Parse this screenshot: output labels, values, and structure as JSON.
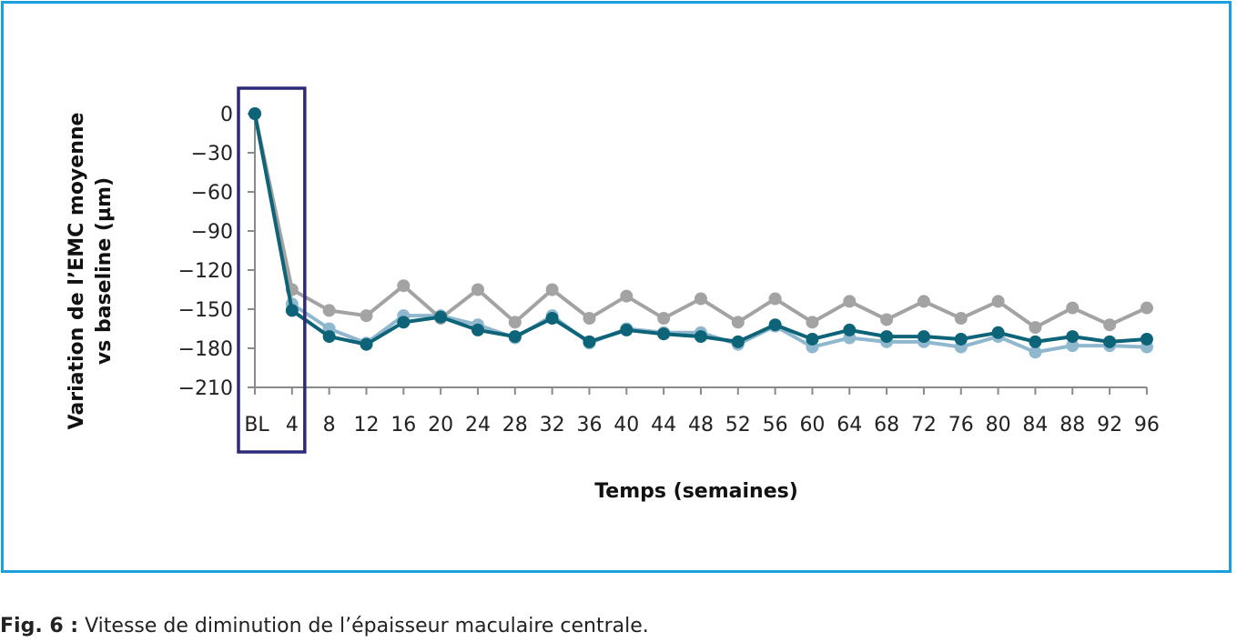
{
  "chart_data": {
    "type": "line",
    "xlabel": "Temps (semaines)",
    "ylabel_line1": "Variation de l’EMC moyenne",
    "ylabel_line2": "vs baseline (µm)",
    "categories": [
      "BL",
      "4",
      "8",
      "12",
      "16",
      "20",
      "24",
      "28",
      "32",
      "36",
      "40",
      "44",
      "48",
      "52",
      "56",
      "60",
      "64",
      "68",
      "72",
      "76",
      "80",
      "84",
      "88",
      "92",
      "96"
    ],
    "yticks": [
      0,
      -30,
      -60,
      -90,
      -120,
      -150,
      -180,
      -210
    ],
    "ytick_labels": [
      "0",
      "−30",
      "−60",
      "−90",
      "−120",
      "−150",
      "−180",
      "−210"
    ],
    "ylim": [
      -210,
      0
    ],
    "grid": false,
    "highlight_box": {
      "from": "BL",
      "to": "4",
      "color": "#2e2a7a"
    },
    "series": [
      {
        "color": "#8fb8cf",
        "values": [
          0,
          -146,
          -165,
          -176,
          -155,
          -155,
          -162,
          -172,
          -155,
          -176,
          -165,
          -168,
          -168,
          -177,
          -163,
          -179,
          -172,
          -175,
          -175,
          -179,
          -171,
          -183,
          -178,
          -178,
          -179
        ]
      },
      {
        "color": "#a3a3a3",
        "values": [
          0,
          -135,
          -151,
          -155,
          -132,
          -157,
          -135,
          -160,
          -135,
          -157,
          -140,
          -157,
          -142,
          -160,
          -142,
          -160,
          -144,
          -158,
          -144,
          -157,
          -144,
          -164,
          -149,
          -162,
          -149
        ]
      },
      {
        "color": "#0d6378",
        "values": [
          0,
          -151,
          -171,
          -177,
          -160,
          -156,
          -166,
          -171,
          -157,
          -175,
          -166,
          -169,
          -171,
          -175,
          -162,
          -173,
          -166,
          -171,
          -171,
          -173,
          -168,
          -175,
          -171,
          -175,
          -173
        ]
      }
    ]
  },
  "caption": {
    "label": "Fig. 6 :",
    "text": " Vitesse de diminution de l’épaisseur maculaire centrale."
  }
}
